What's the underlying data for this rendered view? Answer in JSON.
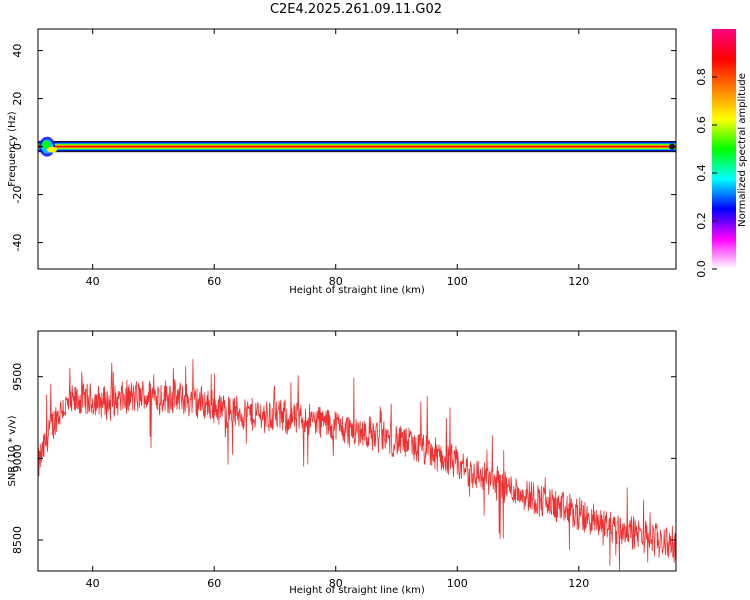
{
  "title": "C2E4.2025.261.09.11.G02",
  "chart_data": [
    {
      "type": "heatmap",
      "xlabel": "Height of straight line (km)",
      "ylabel": "Frequency (Hz)",
      "xlim": [
        31,
        136
      ],
      "ylim": [
        -51,
        49
      ],
      "xticks": [
        40,
        60,
        80,
        100,
        120
      ],
      "yticks": [
        40,
        20,
        0,
        -20,
        -40
      ],
      "dominant_frequency_hz": 0,
      "colorbar": {
        "label": "Normalized spectral amplitude",
        "range": [
          0,
          1
        ],
        "ticks": [
          "0.0",
          "0.2",
          "0.4",
          "0.6",
          "0.8"
        ],
        "colors": [
          "#ffffff",
          "#ff00ff",
          "#0000ff",
          "#00ffff",
          "#00ff00",
          "#ffff00",
          "#ff8000",
          "#ff0000",
          "#ff0080"
        ]
      }
    },
    {
      "type": "line",
      "xlabel": "Height of straight line (km)",
      "ylabel": "SNR (10 * v/v)",
      "xlim": [
        31,
        136
      ],
      "ylim": [
        8310,
        9780
      ],
      "xticks": [
        40,
        60,
        80,
        100,
        120
      ],
      "yticks": [
        9500,
        9000,
        8500
      ],
      "series": [
        {
          "color": "#f03030",
          "x": [
            31,
            33,
            35,
            38,
            40,
            43,
            46,
            50,
            54,
            58,
            62,
            66,
            70,
            74,
            78,
            82,
            86,
            90,
            94,
            98,
            102,
            106,
            110,
            114,
            118,
            122,
            126,
            130,
            134,
            136
          ],
          "y": [
            8950,
            9180,
            9310,
            9360,
            9350,
            9340,
            9370,
            9390,
            9370,
            9340,
            9290,
            9270,
            9260,
            9240,
            9220,
            9180,
            9150,
            9110,
            9060,
            9000,
            8920,
            8860,
            8800,
            8740,
            8680,
            8620,
            8580,
            8530,
            8490,
            8460
          ]
        }
      ]
    }
  ]
}
